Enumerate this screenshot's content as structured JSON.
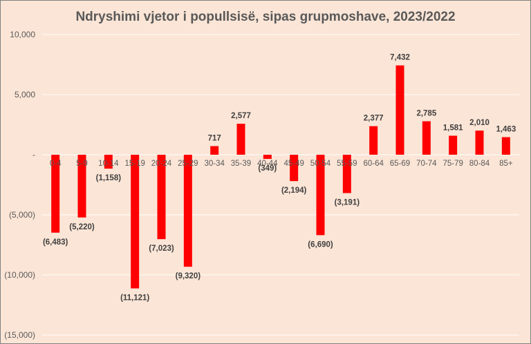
{
  "chart_data": {
    "type": "bar",
    "title": "Ndryshimi vjetor i popullsisë, sipas grupmoshave, 2023/2022",
    "xlabel": "",
    "ylabel": "",
    "categories": [
      "0-4",
      "5-9",
      "10-14",
      "15-19",
      "20-24",
      "25-29",
      "30-34",
      "35-39",
      "40-44",
      "45-49",
      "50-54",
      "55-59",
      "60-64",
      "65-69",
      "70-74",
      "75-79",
      "80-84",
      "85+"
    ],
    "values": [
      -6483,
      -5220,
      -1158,
      -11121,
      -7023,
      -9320,
      717,
      2577,
      -349,
      -2194,
      -6690,
      -3191,
      2377,
      7432,
      2785,
      1581,
      2010,
      1463
    ],
    "data_labels": [
      "(6,483)",
      "(5,220)",
      "(1,158)",
      "(11,121)",
      "(7,023)",
      "(9,320)",
      "717",
      "2,577",
      "(349)",
      "(2,194)",
      "(6,690)",
      "(3,191)",
      "2,377",
      "7,432",
      "2,785",
      "1,581",
      "2,010",
      "1,463"
    ],
    "ylim": [
      -15000,
      10000
    ],
    "yticks": [
      10000,
      5000,
      0,
      -5000,
      -10000,
      -15000
    ],
    "ytick_labels": [
      "10,000",
      "5,000",
      "-",
      "(5,000)",
      "(10,000)",
      "(15,000)"
    ],
    "grid": true,
    "legend": "none",
    "colors": {
      "bar": "#ff0000",
      "background": "#fbe5d6",
      "grid": "#ffffff",
      "text": "#595959"
    }
  }
}
